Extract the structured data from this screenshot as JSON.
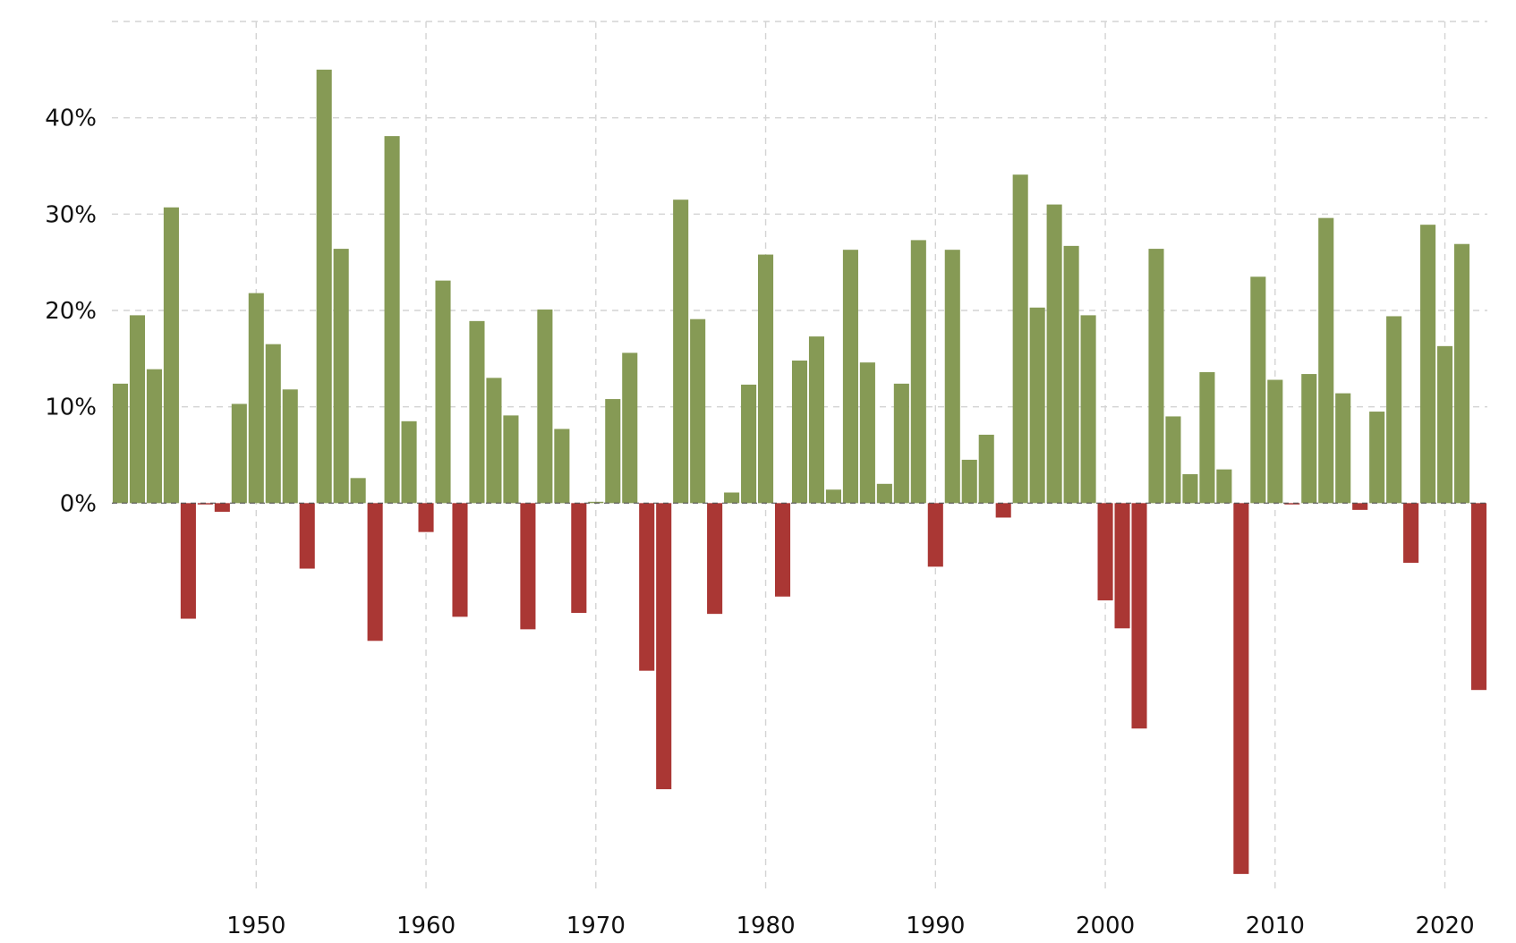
{
  "chart_data": {
    "type": "bar",
    "title": "",
    "xlabel": "",
    "ylabel": "",
    "x": [
      1942,
      1943,
      1944,
      1945,
      1946,
      1947,
      1948,
      1949,
      1950,
      1951,
      1952,
      1953,
      1954,
      1955,
      1956,
      1957,
      1958,
      1959,
      1960,
      1961,
      1962,
      1963,
      1964,
      1965,
      1966,
      1967,
      1968,
      1969,
      1970,
      1971,
      1972,
      1973,
      1974,
      1975,
      1976,
      1977,
      1978,
      1979,
      1980,
      1981,
      1982,
      1983,
      1984,
      1985,
      1986,
      1987,
      1988,
      1989,
      1990,
      1991,
      1992,
      1993,
      1994,
      1995,
      1996,
      1997,
      1998,
      1999,
      2000,
      2001,
      2002,
      2003,
      2004,
      2005,
      2006,
      2007,
      2008,
      2009,
      2010,
      2011,
      2012,
      2013,
      2014,
      2015,
      2016,
      2017,
      2018,
      2019,
      2020,
      2021,
      2022
    ],
    "values": [
      12.4,
      19.5,
      13.9,
      30.7,
      -12.0,
      -0.1,
      -0.9,
      10.3,
      21.8,
      16.5,
      11.8,
      -6.8,
      45.0,
      26.4,
      2.6,
      -14.3,
      38.1,
      8.5,
      -3.0,
      23.1,
      -11.8,
      18.9,
      13.0,
      9.1,
      -13.1,
      20.1,
      7.7,
      -11.4,
      0.1,
      10.8,
      15.6,
      -17.4,
      -29.7,
      31.5,
      19.1,
      -11.5,
      1.1,
      12.3,
      25.8,
      -9.7,
      14.8,
      17.3,
      1.4,
      26.3,
      14.6,
      2.0,
      12.4,
      27.3,
      -6.6,
      26.3,
      4.5,
      7.1,
      -1.5,
      34.1,
      20.3,
      31.0,
      26.7,
      19.5,
      -10.1,
      -13.0,
      -23.4,
      26.4,
      9.0,
      3.0,
      13.6,
      3.5,
      -38.5,
      23.5,
      12.8,
      -0.1,
      13.4,
      29.6,
      11.4,
      -0.7,
      9.5,
      19.4,
      -6.2,
      28.9,
      16.3,
      26.9,
      -19.4
    ],
    "ylim": [
      -40,
      50
    ],
    "xlim": [
      1941.5,
      2022.5
    ],
    "yticks": [
      0,
      10,
      20,
      30,
      40
    ],
    "ytick_labels": [
      "0%",
      "10%",
      "20%",
      "30%",
      "40%"
    ],
    "xticks": [
      1950,
      1960,
      1970,
      1980,
      1990,
      2000,
      2010,
      2020
    ],
    "xtick_labels": [
      "1950",
      "1960",
      "1970",
      "1980",
      "1990",
      "2000",
      "2010",
      "2020"
    ],
    "grid": true,
    "colors": {
      "positive": "#869a55",
      "negative": "#aa3734"
    }
  }
}
